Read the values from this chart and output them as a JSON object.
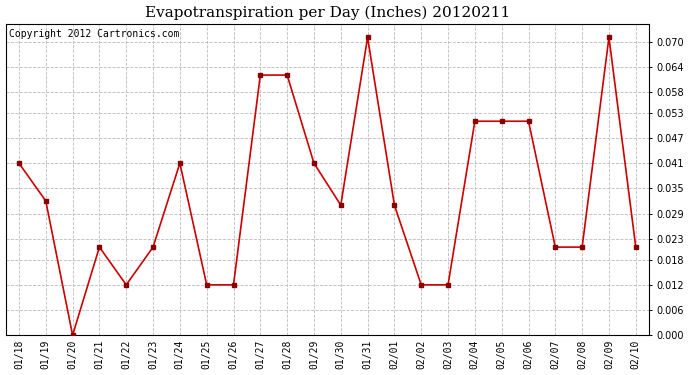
{
  "title": "Evapotranspiration per Day (Inches) 20120211",
  "copyright": "Copyright 2012 Cartronics.com",
  "x_labels": [
    "01/18",
    "01/19",
    "01/20",
    "01/21",
    "01/22",
    "01/23",
    "01/24",
    "01/25",
    "01/26",
    "01/27",
    "01/28",
    "01/29",
    "01/30",
    "01/31",
    "02/01",
    "02/02",
    "02/03",
    "02/04",
    "02/05",
    "02/06",
    "02/07",
    "02/08",
    "02/09",
    "02/10"
  ],
  "y_values": [
    0.041,
    0.032,
    0.0,
    0.021,
    0.012,
    0.021,
    0.041,
    0.012,
    0.012,
    0.062,
    0.062,
    0.041,
    0.031,
    0.071,
    0.031,
    0.012,
    0.012,
    0.051,
    0.051,
    0.051,
    0.021,
    0.021,
    0.071,
    0.021
  ],
  "line_color": "#cc0000",
  "marker_color": "#880000",
  "background_color": "#ffffff",
  "grid_color": "#bbbbbb",
  "ylim": [
    0.0,
    0.0742
  ],
  "yticks": [
    0.0,
    0.006,
    0.012,
    0.018,
    0.023,
    0.029,
    0.035,
    0.041,
    0.047,
    0.053,
    0.058,
    0.064,
    0.07
  ],
  "title_fontsize": 11,
  "copyright_fontsize": 7,
  "tick_fontsize": 7,
  "title_font": "DejaVu Serif",
  "mono_font": "DejaVu Sans Mono"
}
